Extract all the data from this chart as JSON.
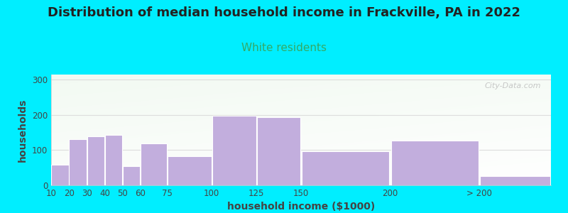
{
  "title": "Distribution of median household income in Frackville, PA in 2022",
  "subtitle": "White residents",
  "xlabel": "household income ($1000)",
  "ylabel": "households",
  "title_fontsize": 13,
  "subtitle_fontsize": 11,
  "subtitle_color": "#33aa66",
  "bar_color": "#c2aedd",
  "bar_edge_color": "#ffffff",
  "background_color": "#00eeff",
  "ylim": [
    0,
    315
  ],
  "yticks": [
    0,
    100,
    200,
    300
  ],
  "categories": [
    "10",
    "20",
    "30",
    "40",
    "50",
    "60",
    "75",
    "100",
    "125",
    "150",
    "200",
    "> 200"
  ],
  "values": [
    58,
    132,
    140,
    143,
    55,
    120,
    83,
    197,
    193,
    97,
    128,
    27
  ],
  "widths": [
    1,
    1,
    1,
    1,
    1,
    1.5,
    2.5,
    2.5,
    2.5,
    5,
    5,
    4
  ],
  "watermark": "City-Data.com",
  "grid_color": "#dddddd",
  "plot_bg_color_top": "#e8f5e0",
  "plot_bg_color_bottom": "#f8fff8"
}
